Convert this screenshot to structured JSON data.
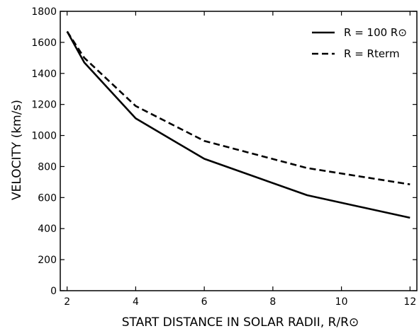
{
  "chart_data": {
    "type": "line",
    "xlabel": "START DISTANCE IN SOLAR RADII, R/R⊙",
    "ylabel": "VELOCITY (km/s)",
    "xlim": [
      1.8,
      12.2
    ],
    "ylim": [
      0,
      1800
    ],
    "x_ticks": [
      2,
      4,
      6,
      8,
      10,
      12
    ],
    "y_ticks": [
      0,
      200,
      400,
      600,
      800,
      1000,
      1200,
      1400,
      1600,
      1800
    ],
    "grid": false,
    "legend_position": "top-right",
    "series": [
      {
        "name": "R = 100 R⊙",
        "line_style": "solid",
        "color": "#000000",
        "x": [
          2,
          2.5,
          4,
          6,
          9,
          12
        ],
        "y": [
          1670,
          1470,
          1110,
          850,
          615,
          470
        ]
      },
      {
        "name": "R = Rterm",
        "line_style": "dashed",
        "color": "#000000",
        "x": [
          2,
          2.5,
          4,
          6,
          9,
          12
        ],
        "y": [
          1670,
          1500,
          1190,
          965,
          790,
          685
        ]
      }
    ]
  }
}
